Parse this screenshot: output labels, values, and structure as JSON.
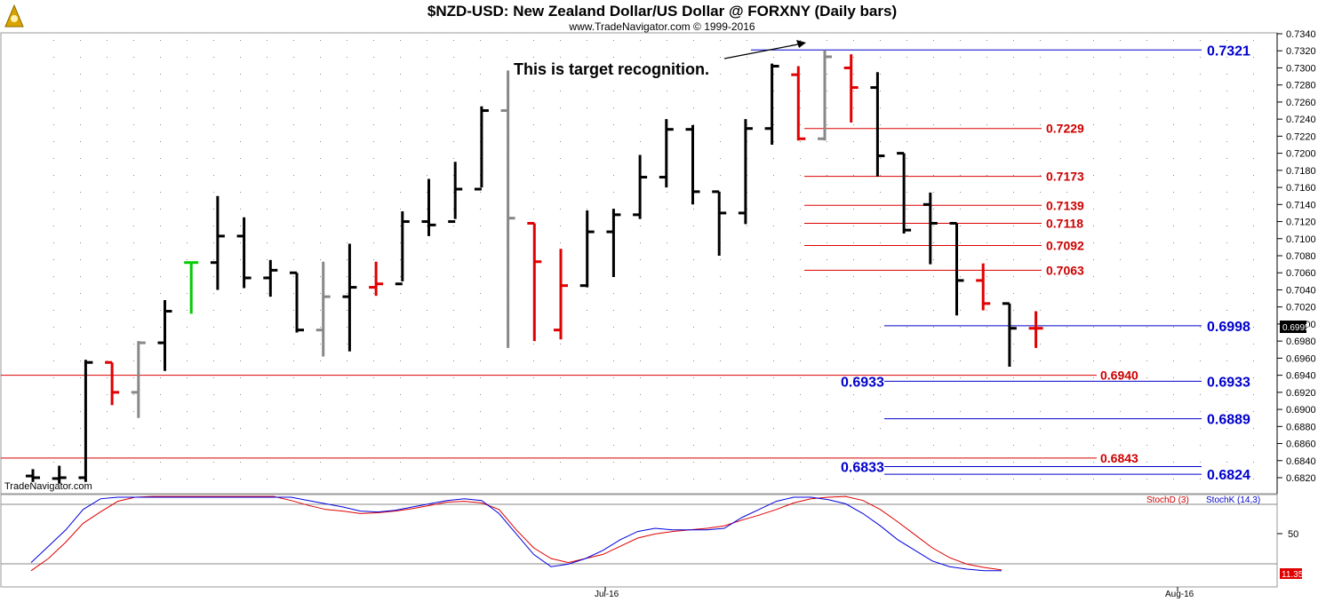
{
  "header": {
    "title": "$NZD-USD:  New Zealand Dollar/US Dollar @ FORXNY  (Daily bars)",
    "subtitle": "www.TradeNavigator.com © 1999-2016",
    "watermark": "TradeNavigator.com"
  },
  "annotation": "This is target recognition.",
  "price_panel": {
    "last_price": "0.6995",
    "y_ticks": [
      "0.7340",
      "0.7320",
      "0.7300",
      "0.7280",
      "0.7260",
      "0.7240",
      "0.7220",
      "0.7200",
      "0.7180",
      "0.7160",
      "0.7140",
      "0.7120",
      "0.7100",
      "0.7080",
      "0.7060",
      "0.7040",
      "0.7020",
      "0.7000",
      "0.6980",
      "0.6960",
      "0.6940",
      "0.6920",
      "0.6900",
      "0.6880",
      "0.6860",
      "0.6840",
      "0.6820"
    ]
  },
  "x_ticks": [
    "Jul-16",
    "Aug-16"
  ],
  "stoch_panel": {
    "legend_d": "StochD (3)",
    "legend_k": "StochK (14,3)",
    "tick_50": "50",
    "last_value": "11.35"
  },
  "colors": {
    "blue_level": "#0000cc",
    "red_level": "#cc0000",
    "bar_black": "#000000",
    "bar_red": "#e00000",
    "bar_gray": "#888888",
    "bar_green": "#00cc00"
  },
  "chart_data": {
    "type": "ohlc",
    "y_range": [
      0.681,
      0.735
    ],
    "bars": [
      {
        "i": 0,
        "o": 0.6822,
        "h": 0.683,
        "l": 0.6815,
        "c": 0.682,
        "color": "black"
      },
      {
        "i": 1,
        "o": 0.6819,
        "h": 0.6834,
        "l": 0.6813,
        "c": 0.682,
        "color": "black"
      },
      {
        "i": 2,
        "o": 0.682,
        "h": 0.6958,
        "l": 0.6815,
        "c": 0.6955,
        "color": "black"
      },
      {
        "i": 3,
        "o": 0.6955,
        "h": 0.6955,
        "l": 0.6905,
        "c": 0.692,
        "color": "red"
      },
      {
        "i": 4,
        "o": 0.692,
        "h": 0.698,
        "l": 0.689,
        "c": 0.6978,
        "color": "gray"
      },
      {
        "i": 5,
        "o": 0.6978,
        "h": 0.7028,
        "l": 0.6945,
        "c": 0.7015,
        "color": "black"
      },
      {
        "i": 6,
        "o": 0.7072,
        "h": 0.7072,
        "l": 0.7012,
        "c": 0.7072,
        "color": "green"
      },
      {
        "i": 7,
        "o": 0.7072,
        "h": 0.715,
        "l": 0.704,
        "c": 0.7103,
        "color": "black"
      },
      {
        "i": 8,
        "o": 0.7103,
        "h": 0.7125,
        "l": 0.7042,
        "c": 0.7054,
        "color": "black"
      },
      {
        "i": 9,
        "o": 0.7054,
        "h": 0.7075,
        "l": 0.7032,
        "c": 0.7063,
        "color": "black"
      },
      {
        "i": 10,
        "o": 0.706,
        "h": 0.706,
        "l": 0.699,
        "c": 0.6993,
        "color": "black"
      },
      {
        "i": 11,
        "o": 0.6993,
        "h": 0.7073,
        "l": 0.6962,
        "c": 0.7032,
        "color": "gray"
      },
      {
        "i": 12,
        "o": 0.7032,
        "h": 0.7094,
        "l": 0.6968,
        "c": 0.7043,
        "color": "black"
      },
      {
        "i": 13,
        "o": 0.7043,
        "h": 0.7073,
        "l": 0.7033,
        "c": 0.7047,
        "color": "red"
      },
      {
        "i": 14,
        "o": 0.7047,
        "h": 0.7132,
        "l": 0.705,
        "c": 0.712,
        "color": "black"
      },
      {
        "i": 15,
        "o": 0.712,
        "h": 0.717,
        "l": 0.7103,
        "c": 0.7116,
        "color": "black"
      },
      {
        "i": 16,
        "o": 0.712,
        "h": 0.719,
        "l": 0.7123,
        "c": 0.7158,
        "color": "black"
      },
      {
        "i": 17,
        "o": 0.7158,
        "h": 0.7255,
        "l": 0.716,
        "c": 0.725,
        "color": "black"
      },
      {
        "i": 18,
        "o": 0.725,
        "h": 0.7297,
        "l": 0.6972,
        "c": 0.7124,
        "color": "gray"
      },
      {
        "i": 19,
        "o": 0.7118,
        "h": 0.7118,
        "l": 0.698,
        "c": 0.7073,
        "color": "red"
      },
      {
        "i": 20,
        "o": 0.6993,
        "h": 0.7088,
        "l": 0.6982,
        "c": 0.7045,
        "color": "red"
      },
      {
        "i": 21,
        "o": 0.7045,
        "h": 0.7133,
        "l": 0.7043,
        "c": 0.7108,
        "color": "black"
      },
      {
        "i": 22,
        "o": 0.7108,
        "h": 0.7135,
        "l": 0.7055,
        "c": 0.7128,
        "color": "black"
      },
      {
        "i": 23,
        "o": 0.7128,
        "h": 0.7198,
        "l": 0.7123,
        "c": 0.7172,
        "color": "black"
      },
      {
        "i": 24,
        "o": 0.7172,
        "h": 0.724,
        "l": 0.716,
        "c": 0.7228,
        "color": "black"
      },
      {
        "i": 25,
        "o": 0.7228,
        "h": 0.7233,
        "l": 0.714,
        "c": 0.7155,
        "color": "black"
      },
      {
        "i": 26,
        "o": 0.7155,
        "h": 0.7155,
        "l": 0.708,
        "c": 0.713,
        "color": "black"
      },
      {
        "i": 27,
        "o": 0.713,
        "h": 0.724,
        "l": 0.7117,
        "c": 0.7229,
        "color": "black"
      },
      {
        "i": 28,
        "o": 0.7229,
        "h": 0.7305,
        "l": 0.721,
        "c": 0.7302,
        "color": "black"
      },
      {
        "i": 29,
        "o": 0.7292,
        "h": 0.7302,
        "l": 0.7215,
        "c": 0.7217,
        "color": "red"
      },
      {
        "i": 30,
        "o": 0.7217,
        "h": 0.7321,
        "l": 0.7215,
        "c": 0.7313,
        "color": "gray"
      },
      {
        "i": 31,
        "o": 0.73,
        "h": 0.7316,
        "l": 0.7236,
        "c": 0.7277,
        "color": "red"
      },
      {
        "i": 32,
        "o": 0.7277,
        "h": 0.7295,
        "l": 0.7173,
        "c": 0.7197,
        "color": "black"
      },
      {
        "i": 33,
        "o": 0.72,
        "h": 0.72,
        "l": 0.7106,
        "c": 0.711,
        "color": "black"
      },
      {
        "i": 34,
        "o": 0.714,
        "h": 0.7154,
        "l": 0.707,
        "c": 0.7118,
        "color": "black"
      },
      {
        "i": 35,
        "o": 0.7118,
        "h": 0.7118,
        "l": 0.701,
        "c": 0.7051,
        "color": "black"
      },
      {
        "i": 36,
        "o": 0.7051,
        "h": 0.7071,
        "l": 0.7016,
        "c": 0.7024,
        "color": "red"
      },
      {
        "i": 37,
        "o": 0.7024,
        "h": 0.7024,
        "l": 0.695,
        "c": 0.6995,
        "color": "black"
      },
      {
        "i": 38,
        "o": 0.6995,
        "h": 0.7015,
        "l": 0.6972,
        "c": 0.6995,
        "color": "red"
      }
    ],
    "levels_blue": [
      {
        "value": 0.7321,
        "label": "0.7321"
      },
      {
        "value": 0.6998,
        "label": "0.6998"
      },
      {
        "value": 0.6933,
        "label": "0.6933"
      },
      {
        "value": 0.6889,
        "label": "0.6889"
      },
      {
        "value": 0.6824,
        "label": "0.6824"
      }
    ],
    "blue_left_labels": [
      {
        "value": 0.6933,
        "label": "0.6933"
      },
      {
        "value": 0.6833,
        "label": "0.6833"
      }
    ],
    "levels_red": [
      {
        "value": 0.7229,
        "label": "0.7229"
      },
      {
        "value": 0.7173,
        "label": "0.7173"
      },
      {
        "value": 0.7139,
        "label": "0.7139"
      },
      {
        "value": 0.7118,
        "label": "0.7118"
      },
      {
        "value": 0.7092,
        "label": "0.7092"
      },
      {
        "value": 0.7063,
        "label": "0.7063"
      }
    ],
    "levels_red_full": [
      {
        "value": 0.694,
        "label": "0.6940"
      },
      {
        "value": 0.6843,
        "label": "0.6843"
      }
    ],
    "stoch": {
      "d": [
        10,
        25,
        45,
        68,
        82,
        95,
        100,
        101,
        101,
        101,
        101,
        101,
        101,
        101,
        101,
        96,
        90,
        85,
        83,
        80,
        81,
        83,
        86,
        90,
        94,
        95,
        93,
        85,
        60,
        38,
        25,
        20,
        25,
        30,
        40,
        50,
        55,
        58,
        60,
        62,
        65,
        72,
        78,
        85,
        93,
        98,
        100,
        101,
        96,
        85,
        70,
        54,
        38,
        26,
        18,
        14,
        11
      ],
      "k": [
        20,
        40,
        60,
        85,
        98,
        100,
        100,
        100,
        100,
        100,
        100,
        100,
        100,
        100,
        100,
        100,
        96,
        92,
        88,
        83,
        82,
        84,
        88,
        92,
        96,
        98,
        96,
        80,
        55,
        30,
        15,
        18,
        25,
        35,
        48,
        58,
        62,
        60,
        60,
        60,
        62,
        75,
        85,
        95,
        100,
        100,
        97,
        92,
        80,
        65,
        48,
        35,
        22,
        15,
        12,
        10,
        10
      ]
    }
  }
}
